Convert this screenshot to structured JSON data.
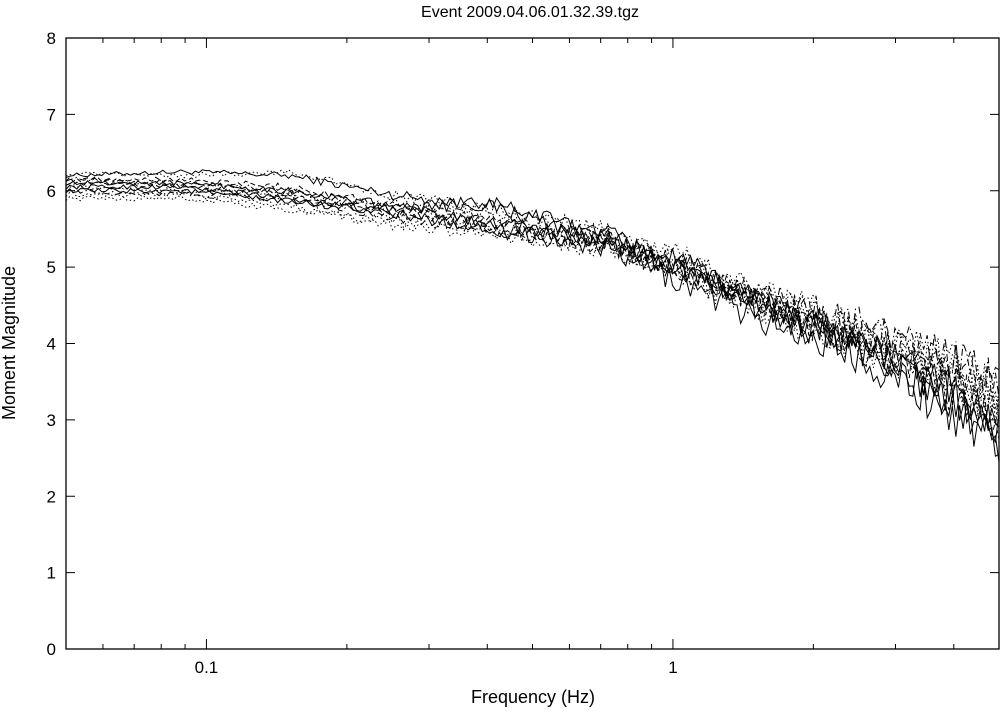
{
  "chart_data": {
    "type": "line",
    "title": "Event 2009.04.06.01.32.39.tgz",
    "xlabel": "Frequency (Hz)",
    "ylabel": "Moment Magnitude",
    "x_scale": "log",
    "xlim": [
      0.05,
      5
    ],
    "ylim": [
      0,
      8
    ],
    "x_ticks": [
      {
        "value": 0.1,
        "label": "0.1"
      },
      {
        "value": 1,
        "label": "1"
      }
    ],
    "y_ticks": [
      0,
      1,
      2,
      3,
      4,
      5,
      6,
      7,
      8
    ],
    "grid": false,
    "legend": "none",
    "line_color": "#000000",
    "series": [
      {
        "style": "solid",
        "x": [
          0.05,
          0.09,
          0.15,
          0.25,
          0.4,
          0.7,
          1.0,
          1.5,
          2.5,
          4.0,
          5.0
        ],
        "y": [
          6.2,
          6.25,
          6.2,
          5.95,
          5.8,
          5.4,
          5.0,
          4.55,
          4.0,
          3.35,
          2.9
        ]
      },
      {
        "style": "solid",
        "x": [
          0.05,
          0.09,
          0.15,
          0.25,
          0.4,
          0.7,
          1.0,
          1.5,
          2.5,
          4.0,
          5.0
        ],
        "y": [
          6.05,
          6.05,
          5.9,
          5.7,
          5.5,
          5.25,
          4.85,
          4.35,
          3.85,
          3.1,
          2.6
        ]
      },
      {
        "style": "solid",
        "x": [
          0.05,
          0.09,
          0.15,
          0.25,
          0.4,
          0.7,
          1.0,
          1.5,
          2.5,
          4.0,
          5.0
        ],
        "y": [
          6.1,
          6.1,
          6.0,
          5.8,
          5.6,
          5.35,
          5.05,
          4.5,
          3.95,
          3.2,
          2.75
        ]
      },
      {
        "style": "solid",
        "x": [
          0.05,
          0.09,
          0.15,
          0.25,
          0.4,
          0.7,
          1.0,
          1.5,
          2.5,
          4.0,
          5.0
        ],
        "y": [
          6.0,
          6.0,
          5.85,
          5.75,
          5.85,
          5.45,
          5.1,
          4.6,
          4.05,
          3.3,
          2.8
        ]
      },
      {
        "style": "dotted",
        "x": [
          0.05,
          0.09,
          0.15,
          0.25,
          0.4,
          0.7,
          1.0,
          1.5,
          2.5,
          4.0,
          5.0
        ],
        "y": [
          6.22,
          6.2,
          6.25,
          5.95,
          5.75,
          5.5,
          5.1,
          4.65,
          4.15,
          3.55,
          3.1
        ]
      },
      {
        "style": "dotted",
        "x": [
          0.05,
          0.09,
          0.15,
          0.25,
          0.4,
          0.7,
          1.0,
          1.5,
          2.5,
          4.0,
          5.0
        ],
        "y": [
          5.9,
          5.9,
          5.75,
          5.6,
          5.5,
          5.3,
          5.0,
          4.5,
          4.1,
          3.6,
          3.2
        ]
      },
      {
        "style": "dotted",
        "x": [
          0.05,
          0.09,
          0.15,
          0.25,
          0.4,
          0.7,
          1.0,
          1.5,
          2.5,
          4.0,
          5.0
        ],
        "y": [
          6.05,
          6.0,
          5.95,
          5.85,
          5.7,
          5.45,
          5.2,
          4.7,
          4.2,
          3.7,
          3.3
        ]
      },
      {
        "style": "dashed",
        "x": [
          0.05,
          0.09,
          0.15,
          0.25,
          0.4,
          0.7,
          1.0,
          1.5,
          2.5,
          4.0,
          5.0
        ],
        "y": [
          6.15,
          6.15,
          6.05,
          5.8,
          5.6,
          5.35,
          5.05,
          4.55,
          4.1,
          3.45,
          3.0
        ]
      },
      {
        "style": "dashed",
        "x": [
          0.05,
          0.09,
          0.15,
          0.25,
          0.4,
          0.7,
          1.0,
          1.5,
          2.5,
          4.0,
          5.0
        ],
        "y": [
          6.1,
          6.05,
          5.95,
          5.7,
          5.55,
          5.3,
          5.0,
          4.5,
          4.0,
          3.4,
          3.05
        ]
      },
      {
        "style": "dashdot",
        "x": [
          0.05,
          0.09,
          0.15,
          0.25,
          0.4,
          0.7,
          1.0,
          1.5,
          2.5,
          4.0,
          5.0
        ],
        "y": [
          6.0,
          5.95,
          5.9,
          5.65,
          5.5,
          5.3,
          5.0,
          4.6,
          4.2,
          3.8,
          3.4
        ]
      },
      {
        "style": "dashdot",
        "x": [
          0.05,
          0.09,
          0.15,
          0.25,
          0.4,
          0.7,
          1.0,
          1.5,
          2.5,
          4.0,
          5.0
        ],
        "y": [
          6.15,
          6.1,
          6.0,
          5.75,
          5.6,
          5.4,
          5.1,
          4.65,
          4.25,
          3.75,
          3.35
        ]
      },
      {
        "style": "dotted",
        "x": [
          0.05,
          0.09,
          0.15,
          0.25,
          0.4,
          0.7,
          1.0,
          1.5,
          2.5,
          4.0,
          5.0
        ],
        "y": [
          5.95,
          5.95,
          5.8,
          5.55,
          5.45,
          5.25,
          4.95,
          4.45,
          4.0,
          3.5,
          3.15
        ]
      }
    ]
  }
}
